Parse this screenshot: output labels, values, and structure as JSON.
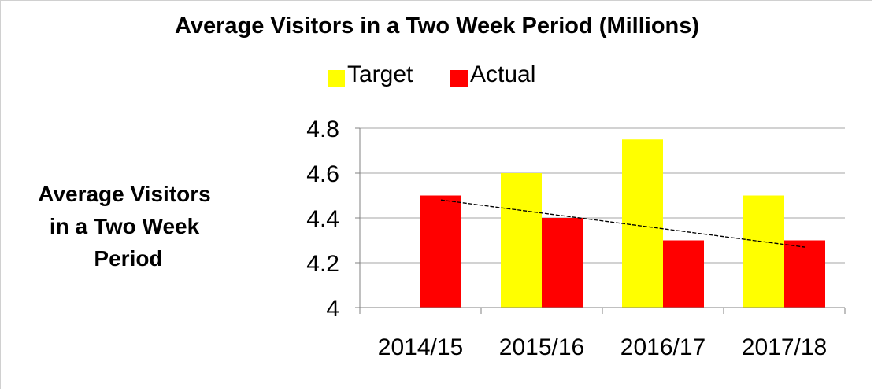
{
  "chart_data": {
    "type": "bar",
    "title": "Average Visitors in a Two Week Period (Millions)",
    "ylabel_lines": [
      "Average Visitors",
      "in a Two Week",
      "Period"
    ],
    "xlabel": "",
    "categories": [
      "2014/15",
      "2015/16",
      "2016/17",
      "2017/18"
    ],
    "series": [
      {
        "name": "Target",
        "color": "#FFFF00",
        "values": [
          null,
          4.6,
          4.75,
          4.5
        ]
      },
      {
        "name": "Actual",
        "color": "#FF0000",
        "values": [
          4.5,
          4.4,
          4.3,
          4.3
        ]
      }
    ],
    "trendline": {
      "series": "Actual",
      "type": "linear",
      "start": 4.48,
      "end": 4.27,
      "color": "#000000",
      "style": "dashed"
    },
    "ylim": [
      4,
      4.8
    ],
    "yticks": [
      4,
      4.2,
      4.4,
      4.6,
      4.8
    ],
    "ytick_labels": [
      "4",
      "4.2",
      "4.4",
      "4.6",
      "4.8"
    ],
    "grid": true,
    "legend_position": "top-center"
  }
}
